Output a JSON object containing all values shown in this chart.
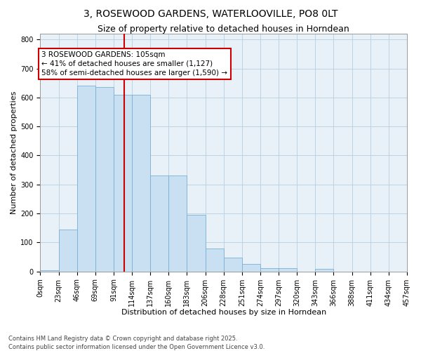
{
  "title_line1": "3, ROSEWOOD GARDENS, WATERLOOVILLE, PO8 0LT",
  "title_line2": "Size of property relative to detached houses in Horndean",
  "xlabel": "Distribution of detached houses by size in Horndean",
  "ylabel": "Number of detached properties",
  "bar_color": "#c9dff2",
  "bar_edge_color": "#7aafd4",
  "grid_color": "#b8cfe0",
  "background_color": "#e8f0f8",
  "annotation_box_color": "#cc0000",
  "vline_color": "#cc0000",
  "annotation_text": "3 ROSEWOOD GARDENS: 105sqm\n← 41% of detached houses are smaller (1,127)\n58% of semi-detached houses are larger (1,590) →",
  "tick_labels": [
    "0sqm",
    "23sqm",
    "46sqm",
    "69sqm",
    "91sqm",
    "114sqm",
    "137sqm",
    "160sqm",
    "183sqm",
    "206sqm",
    "228sqm",
    "251sqm",
    "274sqm",
    "297sqm",
    "320sqm",
    "343sqm",
    "366sqm",
    "388sqm",
    "411sqm",
    "434sqm",
    "457sqm"
  ],
  "bar_heights": [
    5,
    145,
    640,
    635,
    610,
    610,
    330,
    330,
    195,
    80,
    48,
    27,
    12,
    12,
    0,
    8,
    0,
    0,
    0,
    0
  ],
  "n_bins": 20,
  "ylim": [
    0,
    820
  ],
  "yticks": [
    0,
    100,
    200,
    300,
    400,
    500,
    600,
    700,
    800
  ],
  "footer_text": "Contains HM Land Registry data © Crown copyright and database right 2025.\nContains public sector information licensed under the Open Government Licence v3.0.",
  "title_fontsize": 10,
  "subtitle_fontsize": 9,
  "axis_label_fontsize": 8,
  "tick_fontsize": 7,
  "annotation_fontsize": 7.5,
  "footer_fontsize": 6
}
